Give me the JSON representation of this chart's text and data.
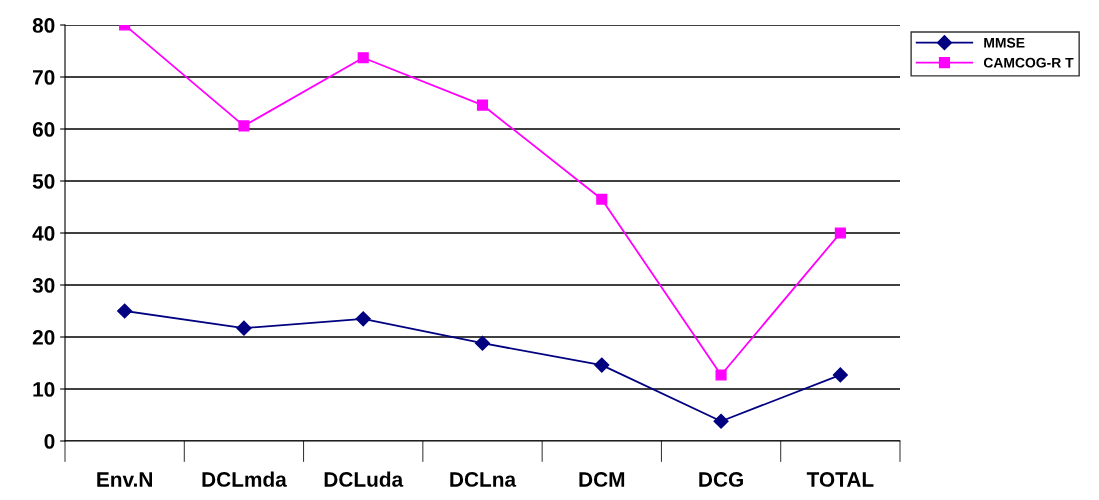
{
  "chart_data": {
    "type": "line",
    "categories": [
      "Env.N",
      "DCLmda",
      "DCLuda",
      "DCLna",
      "DCM",
      "DCG",
      "TOTAL"
    ],
    "series": [
      {
        "name": "MMSE",
        "color": "#000080",
        "marker": "diamond",
        "values": [
          25,
          21.7,
          23.5,
          18.8,
          14.6,
          3.8,
          12.7
        ]
      },
      {
        "name": "CAMCOG-R T",
        "color": "#ff00ff",
        "marker": "square",
        "values": [
          80,
          60.6,
          73.7,
          64.6,
          46.5,
          12.7,
          40
        ]
      }
    ],
    "ylim": [
      0,
      80
    ],
    "yticks": [
      0,
      10,
      20,
      30,
      40,
      50,
      60,
      70,
      80
    ],
    "grid": "y",
    "legend": "right",
    "line_style": "solid"
  }
}
